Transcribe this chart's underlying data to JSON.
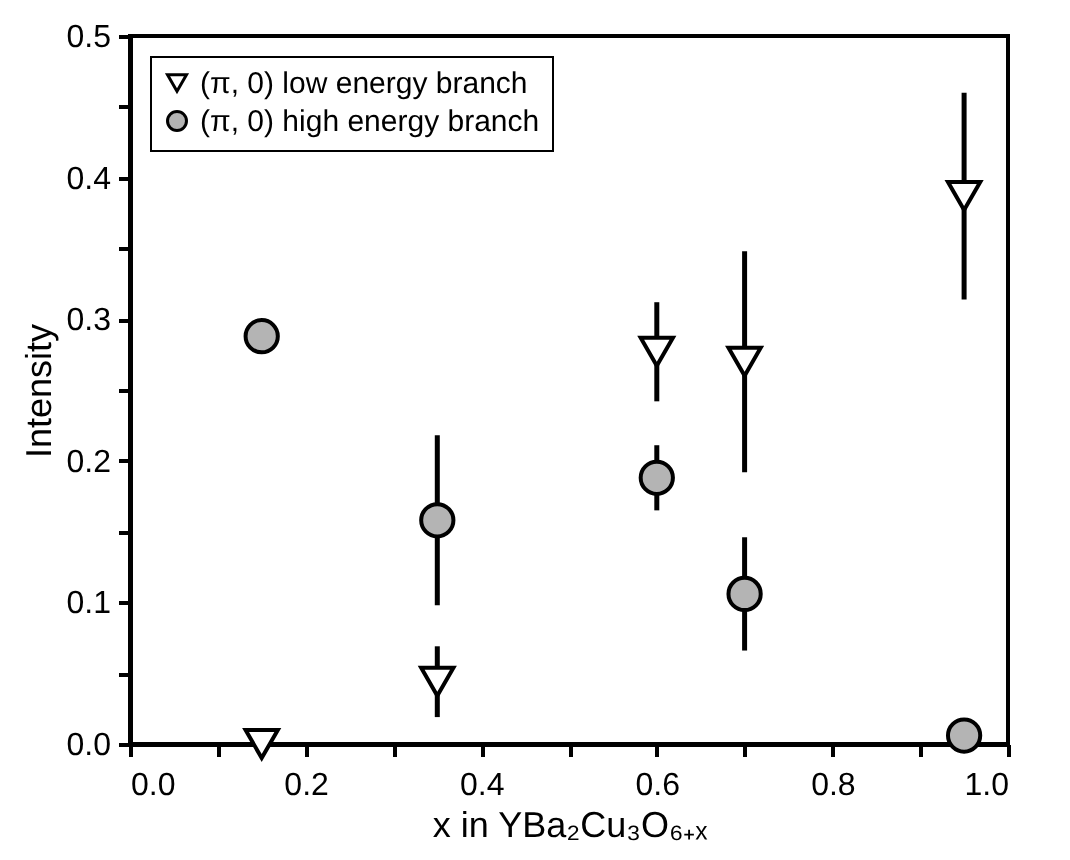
{
  "chart_data": {
    "type": "scatter",
    "xlabel": "x in YBa₂Cu₃O₆₊ₓ",
    "ylabel": "Intensity",
    "xlim": [
      0,
      1
    ],
    "ylim": [
      0,
      0.5
    ],
    "xticks": [
      {
        "value": 0,
        "label": "0.0"
      },
      {
        "value": 0.1,
        "label": null
      },
      {
        "value": 0.2,
        "label": "0.2"
      },
      {
        "value": 0.3,
        "label": null
      },
      {
        "value": 0.4,
        "label": "0.4"
      },
      {
        "value": 0.5,
        "label": null
      },
      {
        "value": 0.6,
        "label": "0.6"
      },
      {
        "value": 0.7,
        "label": null
      },
      {
        "value": 0.8,
        "label": "0.8"
      },
      {
        "value": 0.9,
        "label": null
      },
      {
        "value": 1,
        "label": "1.0"
      }
    ],
    "yticks": [
      {
        "value": 0,
        "label": "0.0"
      },
      {
        "value": 0.05,
        "label": null
      },
      {
        "value": 0.1,
        "label": "0.1"
      },
      {
        "value": 0.15,
        "label": null
      },
      {
        "value": 0.2,
        "label": "0.2"
      },
      {
        "value": 0.25,
        "label": null
      },
      {
        "value": 0.3,
        "label": "0.3"
      },
      {
        "value": 0.35,
        "label": null
      },
      {
        "value": 0.4,
        "label": "0.4"
      },
      {
        "value": 0.45,
        "label": null
      },
      {
        "value": 0.5,
        "label": "0.5"
      }
    ],
    "legend": "top left",
    "grid": false,
    "series": [
      {
        "name": "(π, 0) low energy branch",
        "color": "#ffffff",
        "marker": "triangle",
        "x": [
          0.15,
          0.35,
          0.6,
          0.7,
          0.95
        ],
        "values": [
          0.0,
          0.044,
          0.277,
          0.27,
          0.387
        ],
        "errors": [
          null,
          0.025,
          0.035,
          0.078,
          0.073
        ]
      },
      {
        "name": "(π, 0) high energy branch",
        "color": "#b4b4b4",
        "marker": "circle",
        "x": [
          0.15,
          0.35,
          0.6,
          0.7,
          0.95
        ],
        "values": [
          0.288,
          0.158,
          0.188,
          0.106,
          0.006
        ],
        "errors": [
          null,
          0.06,
          0.023,
          0.04,
          null
        ]
      }
    ]
  }
}
